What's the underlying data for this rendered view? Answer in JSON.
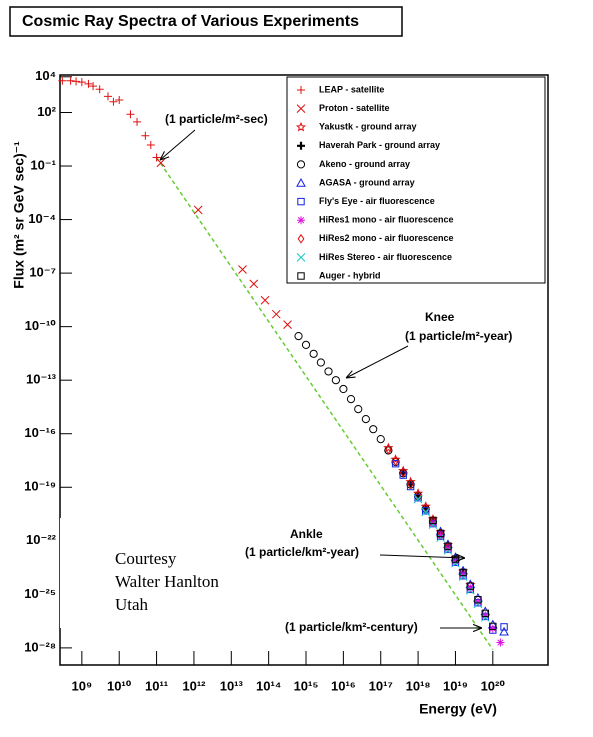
{
  "chart_data": {
    "type": "scatter",
    "title": "Cosmic Ray Spectra of Various Experiments",
    "x_label": "Energy (eV)",
    "y_label": "Flux (m² sr GeV sec)⁻¹",
    "xscale": "log",
    "yscale": "log",
    "xlim": [
      260000000.0,
      3e+21
    ],
    "ylim": [
      1.1e-29,
      12600.0
    ],
    "xticks": [
      {
        "value": 1000000000.0,
        "label": "10⁹"
      },
      {
        "value": 10000000000.0,
        "label": "10¹⁰"
      },
      {
        "value": 100000000000.0,
        "label": "10¹¹"
      },
      {
        "value": 1000000000000.0,
        "label": "10¹²"
      },
      {
        "value": 10000000000000.0,
        "label": "10¹³"
      },
      {
        "value": 100000000000000.0,
        "label": "10¹⁴"
      },
      {
        "value": 1000000000000000.0,
        "label": "10¹⁵"
      },
      {
        "value": 1e+16,
        "label": "10¹⁶"
      },
      {
        "value": 1e+17,
        "label": "10¹⁷"
      },
      {
        "value": 1e+18,
        "label": "10¹⁸"
      },
      {
        "value": 1e+19,
        "label": "10¹⁹"
      },
      {
        "value": 1e+20,
        "label": "10²⁰"
      }
    ],
    "yticks": [
      {
        "value": 10000.0,
        "label": "10⁴"
      },
      {
        "value": 100,
        "label": "10²"
      },
      {
        "value": 0.1,
        "label": "10⁻¹"
      },
      {
        "value": 0.0001,
        "label": "10⁻⁴"
      },
      {
        "value": 1e-07,
        "label": "10⁻⁷"
      },
      {
        "value": 1e-10,
        "label": "10⁻¹⁰"
      },
      {
        "value": 1e-13,
        "label": "10⁻¹³"
      },
      {
        "value": 1e-16,
        "label": "10⁻¹⁶"
      },
      {
        "value": 1e-19,
        "label": "10⁻¹⁹"
      },
      {
        "value": 1e-22,
        "label": "10⁻²²"
      },
      {
        "value": 1e-25,
        "label": "10⁻²⁵"
      },
      {
        "value": 1e-28,
        "label": "10⁻²⁸"
      }
    ],
    "legend": "upper right",
    "reference_line": {
      "color": "#66cc33",
      "x": [
        100000000000.0,
        1e+20
      ],
      "values": [
        0.3,
        8e-29
      ]
    },
    "annotations": [
      "(1 particle/m²-sec)",
      "Knee",
      "(1 particle/m²-year)",
      "Ankle",
      "(1 particle/km²-year)",
      "(1 particle/km²-century)"
    ],
    "note": [
      "Courtesy",
      "Walter Hanlton",
      "Utah"
    ],
    "series": [
      {
        "name": "LEAP - satellite",
        "color": "#e01010",
        "marker": "plus",
        "x": [
          300000000.0,
          500000000.0,
          700000000.0,
          1000000000.0,
          1500000000.0,
          2000000000.0,
          3000000000.0,
          5000000000.0,
          7000000000.0,
          10000000000.0,
          20000000000.0,
          30000000000.0,
          50000000000.0,
          70000000000.0,
          100000000000.0
        ],
        "values": [
          6000,
          6000,
          5500,
          5000,
          4000,
          3000,
          2000,
          800,
          400,
          500,
          80,
          30,
          5,
          1.5,
          0.3
        ]
      },
      {
        "name": "Proton - satellite",
        "color": "#e01010",
        "marker": "x",
        "x": [
          130000000000.0,
          1300000000000.0,
          20000000000000.0,
          40000000000000.0,
          80000000000000.0,
          160000000000000.0,
          320000000000000.0
        ],
        "values": [
          0.15,
          0.00035,
          1.6e-07,
          2.5e-08,
          3e-09,
          5e-10,
          1.3e-10
        ]
      },
      {
        "name": "Yakustk - ground array",
        "color": "#e01010",
        "marker": "star",
        "x": [
          1.6e+17,
          2.5e+17,
          4e+17,
          6.3e+17,
          1e+18,
          1.6e+18,
          2.5e+18,
          4e+18,
          6.3e+18,
          1e+19,
          1.6e+19,
          2.5e+19
        ],
        "values": [
          1.6e-17,
          3.6e-18,
          8.4e-19,
          2e-19,
          4.5e-20,
          8.4e-21,
          1.6e-21,
          3.1e-22,
          5.9e-23,
          1.1e-23,
          2e-24,
          3.4e-25
        ]
      },
      {
        "name": "Haverah Park - ground array",
        "color": "#000000",
        "marker": "cross",
        "x": [
          4e+17,
          6.3e+17,
          1e+18,
          1.6e+18,
          2.5e+18,
          4e+18,
          6.3e+18,
          1e+19,
          1.6e+19
        ],
        "values": [
          6.5e-19,
          1.5e-19,
          3.4e-20,
          6.5e-21,
          1.2e-21,
          2.3e-22,
          4.5e-23,
          8.5e-24,
          1.5e-24
        ]
      },
      {
        "name": "Akeno - ground array",
        "color": "#000000",
        "marker": "circle",
        "x": [
          630000000000000.0,
          1000000000000000.0,
          1600000000000000.0,
          2500000000000000.0,
          4000000000000000.0,
          6300000000000000.0,
          1e+16,
          1.6e+16,
          2.5e+16,
          4e+16,
          6.3e+16,
          1e+17,
          1.6e+17,
          2.5e+17,
          4e+17,
          6.3e+17,
          1e+18,
          1.6e+18,
          2.5e+18,
          4e+18
        ],
        "values": [
          2.95e-11,
          9.5e-12,
          3e-12,
          9.8e-13,
          3.1e-13,
          1e-13,
          3.2e-14,
          8.7e-15,
          2.4e-15,
          6.6e-16,
          1.8e-16,
          5e-17,
          1.15e-17,
          2.6e-18,
          6e-19,
          1.4e-19,
          3.2e-20,
          6e-21,
          1.15e-21,
          2.2e-22
        ]
      },
      {
        "name": "AGASA - ground array",
        "color": "#1020e0",
        "marker": "triangle",
        "x": [
          4e+18,
          6.3e+18,
          1e+19,
          1.6e+19,
          2.5e+19,
          4e+19,
          6.3e+19,
          1e+20,
          2e+20
        ],
        "values": [
          3.3e-22,
          6.3e-23,
          1.2e-23,
          2.1e-24,
          3.6e-25,
          6.3e-26,
          1.1e-26,
          2e-27,
          8e-28
        ]
      },
      {
        "name": "Fly's Eye - air fluorescence",
        "color": "#1020e0",
        "marker": "square",
        "x": [
          2.5e+17,
          4e+17,
          6.3e+17,
          1e+18,
          1.6e+18,
          2.5e+18,
          4e+18,
          6.3e+18,
          1e+19,
          1.6e+19,
          2.5e+19,
          4e+19,
          6.3e+19,
          1e+20,
          2e+20
        ],
        "values": [
          2.1e-18,
          4.8e-19,
          1.1e-19,
          2.6e-20,
          4.8e-21,
          9.2e-22,
          1.8e-22,
          3.4e-23,
          6.3e-24,
          1.1e-24,
          1.9e-25,
          3.4e-26,
          5.8e-27,
          1e-27,
          1.5e-27
        ]
      },
      {
        "name": "HiRes1 mono - air fluorescence",
        "color": "#e010e0",
        "marker": "asterisk",
        "x": [
          2.5e+18,
          4e+18,
          6.3e+18,
          1e+19,
          1.6e+19,
          2.5e+19,
          4e+19,
          6.3e+19,
          1e+20,
          1.6e+20
        ],
        "values": [
          1e-21,
          2e-22,
          3.8e-23,
          7.1e-24,
          1.3e-24,
          2.2e-25,
          3.8e-26,
          6.5e-27,
          1.2e-27,
          2e-28
        ]
      },
      {
        "name": "HiRes2 mono - air fluorescence",
        "color": "#e01010",
        "marker": "diamond",
        "x": [
          1.6e+17,
          2.5e+17,
          4e+17,
          6.3e+17,
          1e+18,
          1.6e+18,
          2.5e+18,
          4e+18,
          6.3e+18
        ],
        "values": [
          1.3e-17,
          2.9e-18,
          6.6e-19,
          1.5e-19,
          3.5e-20,
          6.6e-21,
          1.3e-21,
          2.4e-22,
          4.6e-23
        ]
      },
      {
        "name": "HiRes Stereo - air fluorescence",
        "color": "#10c8c8",
        "marker": "x",
        "x": [
          1e+18,
          1.6e+18,
          2.5e+18,
          4e+18,
          6.3e+18,
          1e+19,
          1.6e+19,
          2.5e+19,
          4e+19,
          6.3e+19
        ],
        "values": [
          2.2e-20,
          4.2e-21,
          8.1e-22,
          1.5e-22,
          2.9e-23,
          5.5e-24,
          9.8e-25,
          1.7e-25,
          2.9e-26,
          5e-27
        ]
      },
      {
        "name": "Auger - hybrid",
        "color": "#000000",
        "marker": "square",
        "x": [
          2.5e+18,
          4e+18,
          6.3e+18,
          1e+19,
          1.6e+19,
          2.5e+19,
          4e+19,
          6.3e+19,
          1e+20
        ],
        "values": [
          1.4e-21,
          2.6e-22,
          5e-23,
          9.5e-24,
          1.7e-24,
          2.9e-25,
          5e-26,
          8.6e-27,
          1.6e-27
        ]
      }
    ]
  }
}
